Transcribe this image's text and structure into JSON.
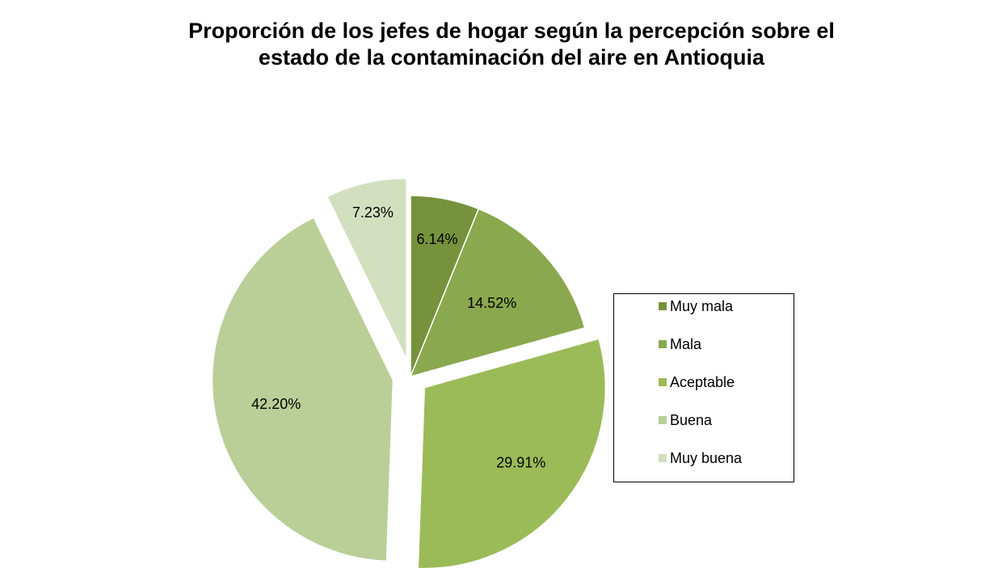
{
  "chart_data": {
    "type": "pie",
    "title_lines": [
      "Proporción de los jefes de  hogar según la percepción sobre el",
      "estado de la contaminación del aire en Antioquia"
    ],
    "categories": [
      "Muy mala",
      "Mala",
      "Aceptable",
      "Buena",
      "Muy buena"
    ],
    "values": [
      6.14,
      14.52,
      29.91,
      42.2,
      7.23
    ],
    "labels": [
      "6.14%",
      "14.52%",
      "29.91%",
      "42.20%",
      "7.23%"
    ],
    "colors": [
      "#76923c",
      "#8aa84e",
      "#9bbb59",
      "#b9cf97",
      "#d2e0bf"
    ],
    "exploded": [
      false,
      false,
      true,
      true,
      true
    ],
    "legend_position": "right"
  }
}
